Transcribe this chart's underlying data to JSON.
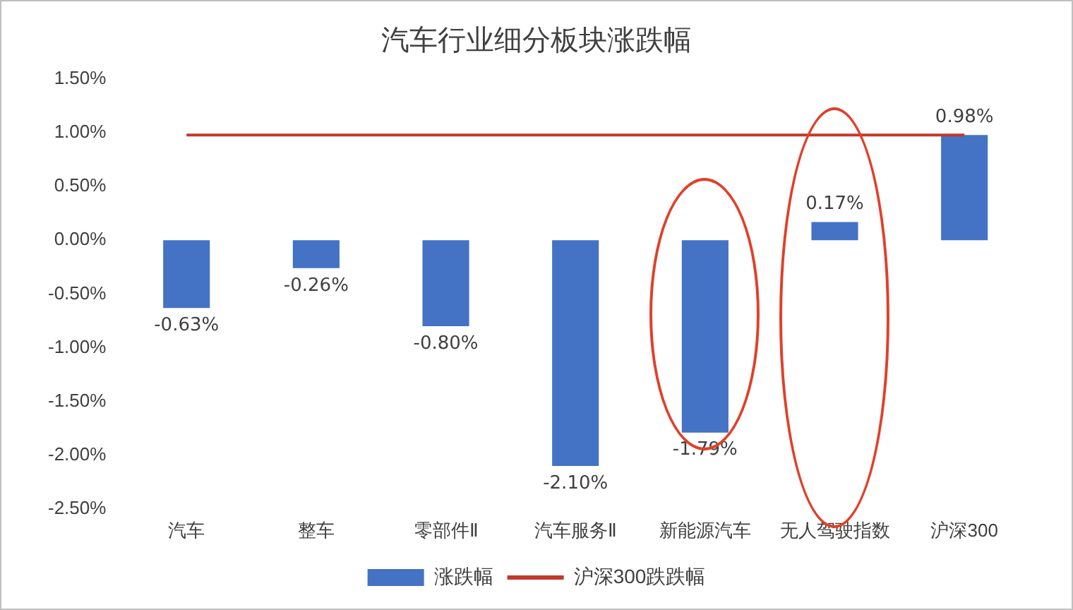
{
  "chart_data": {
    "type": "bar",
    "title": "汽车行业细分板块涨跌幅",
    "categories": [
      "汽车",
      "整车",
      "零部件Ⅱ",
      "汽车服务Ⅱ",
      "新能源汽车",
      "无人驾驶指数",
      "沪深300"
    ],
    "series": [
      {
        "name": "涨跌幅",
        "color": "#4472c4",
        "values": [
          -0.63,
          -0.26,
          -0.8,
          -2.1,
          -1.79,
          0.17,
          0.98
        ],
        "value_labels": [
          "-0.63%",
          "-0.26%",
          "-0.80%",
          "-2.10%",
          "-1.79%",
          "0.17%",
          "0.98%"
        ]
      },
      {
        "name": "沪深300跌跌幅",
        "type": "line",
        "color": "#c0392b",
        "values": [
          0.98,
          0.98,
          0.98,
          0.98,
          0.98,
          0.98,
          0.98
        ]
      }
    ],
    "ylim": [
      -2.5,
      1.5
    ],
    "yticks": [
      {
        "value": -2.5,
        "label": "-2.50%"
      },
      {
        "value": -2,
        "label": "-2.00%"
      },
      {
        "value": -1.5,
        "label": "-1.50%"
      },
      {
        "value": -1,
        "label": "-1.00%"
      },
      {
        "value": -0.5,
        "label": "-0.50%"
      },
      {
        "value": 0,
        "label": "0.00%"
      },
      {
        "value": 0.5,
        "label": "0.50%"
      },
      {
        "value": 1,
        "label": "1.00%"
      },
      {
        "value": 1.5,
        "label": "1.50%"
      }
    ],
    "grid": false,
    "legend": "bottom",
    "marker": "none"
  }
}
